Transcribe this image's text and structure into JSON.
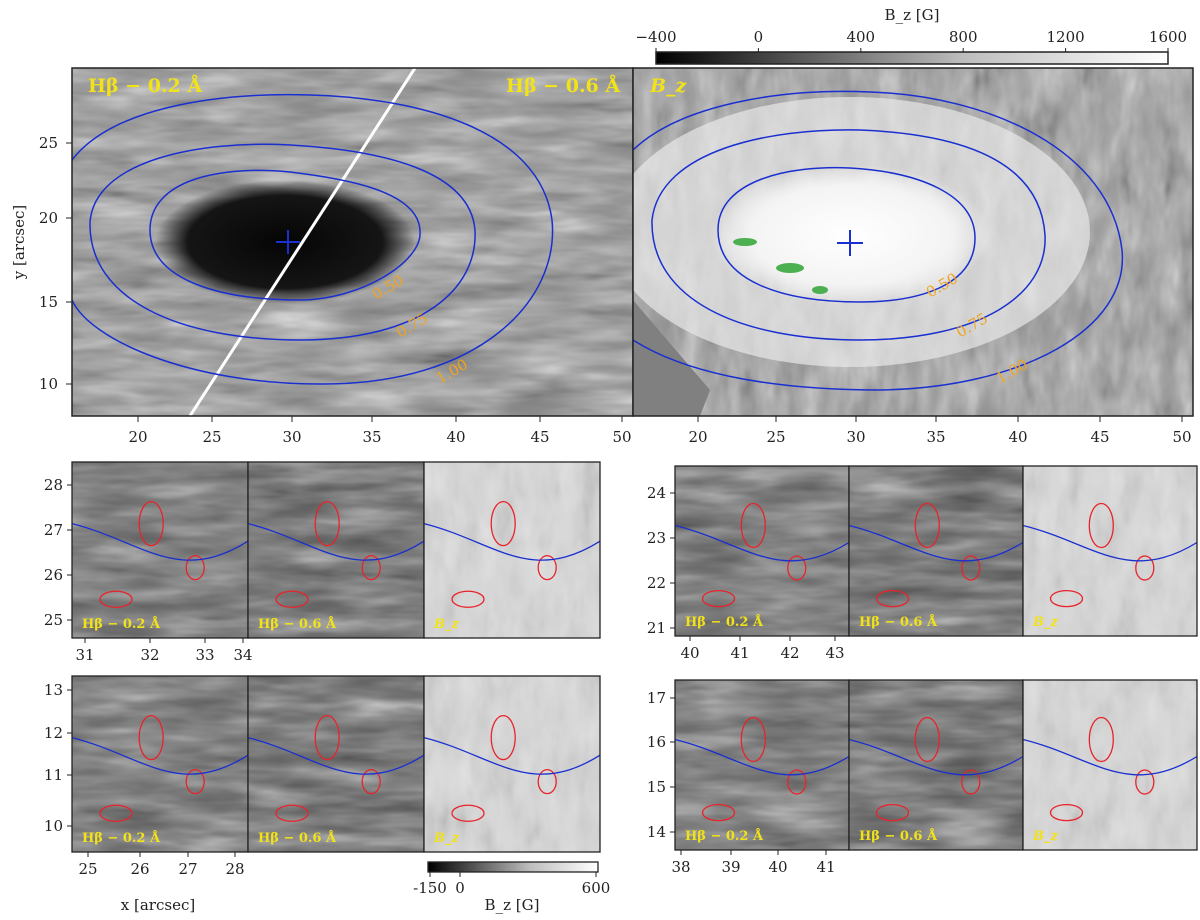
{
  "colorbars": {
    "main": {
      "label": "B_z [G]",
      "ticks": [
        "−400",
        "0",
        "400",
        "800",
        "1200",
        "1600"
      ]
    },
    "inset": {
      "label": "B_z [G]",
      "ticks": [
        "-150",
        "0",
        "600"
      ]
    }
  },
  "main_panels": {
    "left_label_a": "Hβ − 0.2 Å",
    "left_label_b": "Hβ − 0.6 Å",
    "right_label": "B_z",
    "contours": [
      "0.50",
      "0.75",
      "1.00"
    ],
    "ylabel": "y [arcsec]",
    "x_ticks": [
      "20",
      "25",
      "30",
      "35",
      "40",
      "45",
      "50"
    ],
    "y_ticks": [
      "25",
      "20",
      "15",
      "10"
    ]
  },
  "insets": {
    "labels": [
      "Hβ − 0.2 Å",
      "Hβ − 0.6 Å",
      "B_z"
    ],
    "a": {
      "y_ticks": [
        "28",
        "27",
        "26",
        "25"
      ],
      "x_ticks": [
        "31",
        "32",
        "33",
        "34"
      ]
    },
    "b": {
      "y_ticks": [
        "24",
        "23",
        "22",
        "21"
      ],
      "x_ticks": [
        "40",
        "41",
        "42",
        "43"
      ]
    },
    "c": {
      "y_ticks": [
        "13",
        "12",
        "11",
        "10"
      ],
      "x_ticks": [
        "25",
        "26",
        "27",
        "28"
      ]
    },
    "d": {
      "y_ticks": [
        "17",
        "16",
        "15",
        "14"
      ],
      "x_ticks": [
        "38",
        "39",
        "40",
        "41"
      ]
    },
    "xlabel": "x [arcsec]"
  },
  "colors": {
    "contour": "#1a2fd0",
    "bright_points": "#e8232a",
    "label": "#f2e21a",
    "contour_label": "#f3a31a"
  }
}
